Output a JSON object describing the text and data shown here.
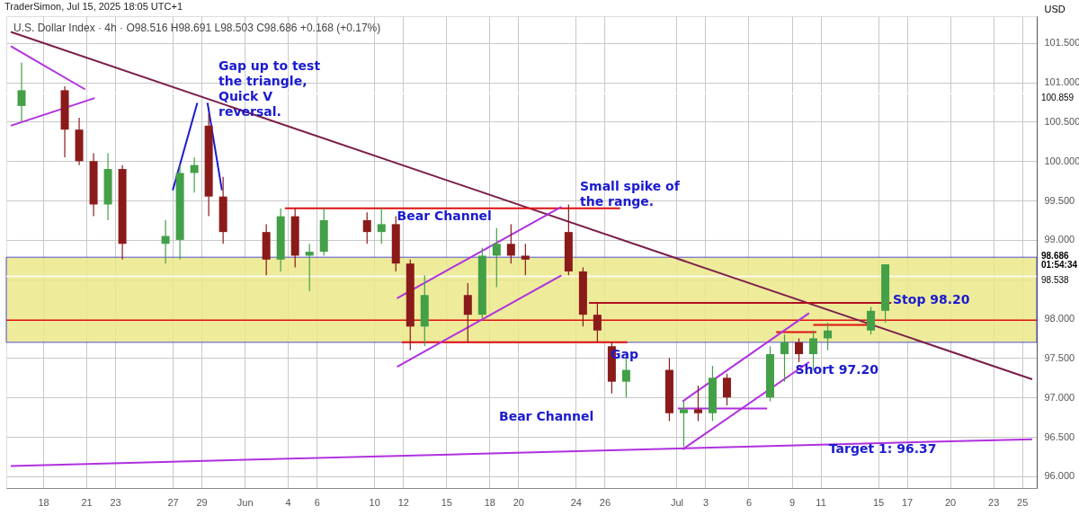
{
  "chart_data": {
    "type": "candlestick",
    "title": "TraderSimon, Jul 15, 2025 18:05 UTC+1",
    "subtitle": "U.S. Dollar Index · 4h · O98.516 H98.691 L98.503 C98.686 +0.168 (+0.17%)",
    "ylabel": "USD",
    "x": [
      "2025-05-16T12:00",
      "2025-05-19T12:00",
      "2025-05-20T12:00",
      "2025-05-21T12:00",
      "2025-05-22T12:00",
      "2025-05-23T12:00",
      "2025-05-26T12:00",
      "2025-05-27T12:00",
      "2025-05-28T12:00",
      "2025-05-29T12:00",
      "2025-05-30T12:00",
      "2025-06-02T12:00",
      "2025-06-03T12:00",
      "2025-06-04T12:00",
      "2025-06-05T12:00",
      "2025-06-06T12:00",
      "2025-06-09T12:00",
      "2025-06-10T12:00",
      "2025-06-11T12:00",
      "2025-06-12T12:00",
      "2025-06-13T12:00",
      "2025-06-16T12:00",
      "2025-06-17T12:00",
      "2025-06-18T12:00",
      "2025-06-19T12:00",
      "2025-06-20T12:00",
      "2025-06-23T12:00",
      "2025-06-24T12:00",
      "2025-06-25T12:00",
      "2025-06-26T12:00",
      "2025-06-27T12:00",
      "2025-06-30T12:00",
      "2025-07-01T12:00",
      "2025-07-02T12:00",
      "2025-07-03T12:00",
      "2025-07-04T12:00",
      "2025-07-07T12:00",
      "2025-07-08T12:00",
      "2025-07-09T12:00",
      "2025-07-10T12:00",
      "2025-07-11T12:00",
      "2025-07-14T12:00",
      "2025-07-15T12:00"
    ],
    "ohlc": [
      [
        100.7,
        101.25,
        100.5,
        100.9
      ],
      [
        100.9,
        100.95,
        100.05,
        100.4
      ],
      [
        100.4,
        100.55,
        99.95,
        100.0
      ],
      [
        100.0,
        100.1,
        99.3,
        99.45
      ],
      [
        99.45,
        100.1,
        99.25,
        99.9
      ],
      [
        99.9,
        99.95,
        98.75,
        98.95
      ],
      [
        98.95,
        99.25,
        98.7,
        99.05
      ],
      [
        99.0,
        99.95,
        98.75,
        99.85
      ],
      [
        99.85,
        100.05,
        99.6,
        99.95
      ],
      [
        100.45,
        100.6,
        99.3,
        99.55
      ],
      [
        99.55,
        99.8,
        98.95,
        99.1
      ],
      [
        99.1,
        99.2,
        98.55,
        98.75
      ],
      [
        98.75,
        99.4,
        98.6,
        99.3
      ],
      [
        99.3,
        99.4,
        98.65,
        98.8
      ],
      [
        98.8,
        98.95,
        98.35,
        98.85
      ],
      [
        98.85,
        99.4,
        98.8,
        99.25
      ],
      [
        99.25,
        99.35,
        98.95,
        99.1
      ],
      [
        99.1,
        99.4,
        98.95,
        99.2
      ],
      [
        99.2,
        99.3,
        98.6,
        98.7
      ],
      [
        98.7,
        98.75,
        97.6,
        97.9
      ],
      [
        97.9,
        98.55,
        97.65,
        98.3
      ],
      [
        98.3,
        98.45,
        97.7,
        98.05
      ],
      [
        98.05,
        98.9,
        98.0,
        98.8
      ],
      [
        98.8,
        99.15,
        98.4,
        98.95
      ],
      [
        98.95,
        99.2,
        98.7,
        98.8
      ],
      [
        98.8,
        98.95,
        98.55,
        98.75
      ],
      [
        99.1,
        99.45,
        98.55,
        98.6
      ],
      [
        98.6,
        98.65,
        97.9,
        98.05
      ],
      [
        98.05,
        98.2,
        97.7,
        97.85
      ],
      [
        97.65,
        97.7,
        97.05,
        97.2
      ],
      [
        97.2,
        97.5,
        97.0,
        97.35
      ],
      [
        97.35,
        97.5,
        96.7,
        96.8
      ],
      [
        96.8,
        96.95,
        96.37,
        96.85
      ],
      [
        96.85,
        97.15,
        96.7,
        96.8
      ],
      [
        96.8,
        97.4,
        96.7,
        97.25
      ],
      [
        97.25,
        97.3,
        96.9,
        97.0
      ],
      [
        97.0,
        97.65,
        96.95,
        97.55
      ],
      [
        97.55,
        97.8,
        97.2,
        97.7
      ],
      [
        97.7,
        97.75,
        97.45,
        97.55
      ],
      [
        97.55,
        97.85,
        97.35,
        97.75
      ],
      [
        97.75,
        97.95,
        97.6,
        97.85
      ],
      [
        97.85,
        98.15,
        97.8,
        98.1
      ],
      [
        98.1,
        98.69,
        97.95,
        98.69
      ]
    ],
    "series": [
      {
        "type": "line",
        "color": "#7b1f4a",
        "x": [
          "2025-05-15T18:00",
          "2025-07-25T17:00"
        ],
        "values": [
          101.64,
          97.23
        ]
      },
      {
        "type": "line",
        "color": "#b030e0",
        "x": [
          "2025-05-15T18:00",
          "2025-07-25T17:00"
        ],
        "values": [
          96.13,
          96.47
        ]
      },
      {
        "type": "line",
        "color": "#e01010",
        "x": [
          "2025-06-03T19:00",
          "2025-06-27T02:00"
        ],
        "values": [
          99.4,
          99.4
        ]
      },
      {
        "type": "line",
        "color": "#e01010",
        "x": [
          "2025-06-11T22:00",
          "2025-06-27T14:00"
        ],
        "values": [
          97.7,
          97.7
        ]
      },
      {
        "type": "line",
        "color": "#b01020",
        "x": [
          "2025-06-24T22:00",
          "2025-07-15T22:00"
        ],
        "values": [
          98.2,
          98.2
        ]
      },
      {
        "type": "line",
        "color": "#e01010",
        "x": [
          "2025-07-07T22:00",
          "2025-07-10T17:00"
        ],
        "values": [
          97.83,
          97.83
        ]
      },
      {
        "type": "line",
        "color": "#e01010",
        "x": [
          "2025-07-10T12:00",
          "2025-07-14T10:00"
        ],
        "values": [
          97.92,
          97.92
        ]
      },
      {
        "type": "line",
        "color": "#b030e0",
        "x": [
          "2025-07-01T02:00",
          "2025-07-07T07:00"
        ],
        "values": [
          96.86,
          96.86
        ]
      },
      {
        "type": "line",
        "color": "#b030e0",
        "x": [
          "2025-06-11T14:00",
          "2025-06-23T00:00"
        ],
        "values": [
          98.26,
          99.42
        ]
      },
      {
        "type": "line",
        "color": "#b030e0",
        "x": [
          "2025-06-11T14:00",
          "2025-06-23T00:00"
        ],
        "values": [
          97.39,
          98.55
        ]
      },
      {
        "type": "line",
        "color": "#b030e0",
        "x": [
          "2025-07-01T10:00",
          "2025-07-10T05:00"
        ],
        "values": [
          96.95,
          98.07
        ]
      },
      {
        "type": "line",
        "color": "#b030e0",
        "x": [
          "2025-07-01T10:00",
          "2025-07-10T05:00"
        ],
        "values": [
          96.34,
          97.45
        ]
      },
      {
        "type": "line",
        "color": "#1a1ad0",
        "x": [
          "2025-05-27T00:00",
          "2025-05-28T17:00"
        ],
        "values": [
          99.63,
          100.74
        ]
      },
      {
        "type": "line",
        "color": "#1a1ad0",
        "x": [
          "2025-05-29T10:00",
          "2025-05-30T10:00"
        ],
        "values": [
          100.74,
          99.63
        ]
      },
      {
        "type": "line",
        "color": "#b030e0",
        "x": [
          "2025-05-15T18:00",
          "2025-05-20T22:00"
        ],
        "values": [
          101.46,
          100.91
        ]
      },
      {
        "type": "line",
        "color": "#b030e0",
        "x": [
          "2025-05-15T18:00",
          "2025-05-21T14:00"
        ],
        "values": [
          100.45,
          100.8
        ]
      }
    ],
    "bands": [
      {
        "axis": "y",
        "from": 97.7,
        "to": 98.78,
        "color": "#ece88a"
      }
    ],
    "ref_lines": [
      {
        "axis": "y",
        "value": 100.859,
        "label": "100.859",
        "color": "#ffffff"
      },
      {
        "axis": "y",
        "value": 98.538,
        "label": "98.538",
        "color": "#ffffff"
      },
      {
        "axis": "y",
        "value": 97.98,
        "color": "#e01010"
      }
    ],
    "annotations": [
      "Gap up to test\nthe triangle,\nQuick V\nreversal.",
      "Small spike of\nthe range.",
      {
        "text": "Bear Channel",
        "x": "2025-06-11T14:00",
        "y": 99.38
      },
      "Bear Channel",
      {
        "text": "Gap",
        "x": "2025-06-26T10:00",
        "y": 97.62
      },
      "Stop 98.20",
      {
        "text": "Short 97.20",
        "x": "2025-07-09T06:00",
        "y": 97.42
      },
      {
        "text": "Target 1: 96.37",
        "x": "2025-07-11T14:00",
        "y": 96.42
      },
      {
        "text": "98.686\n01:54:34",
        "x": "2025-07-25T17:00",
        "y": 98.686
      }
    ],
    "xlim": [
      "2025-05-15T18:00",
      "2025-07-25T17:00"
    ],
    "ylim": [
      95.85,
      101.84
    ],
    "xticks": [
      {
        "value": "2025-05-18",
        "label": "18"
      },
      {
        "value": "2025-05-21",
        "label": "21"
      },
      {
        "value": "2025-05-23",
        "label": "23"
      },
      {
        "value": "2025-05-27",
        "label": "27"
      },
      {
        "value": "2025-05-29",
        "label": "29"
      },
      {
        "value": "2025-06-01",
        "label": "Jun"
      },
      {
        "value": "2025-06-04",
        "label": "4"
      },
      {
        "value": "2025-06-06",
        "label": "6"
      },
      {
        "value": "2025-06-10",
        "label": "10"
      },
      {
        "value": "2025-06-12",
        "label": "12"
      },
      {
        "value": "2025-06-15",
        "label": "15"
      },
      {
        "value": "2025-06-18",
        "label": "18"
      },
      {
        "value": "2025-06-20",
        "label": "20"
      },
      {
        "value": "2025-06-24",
        "label": "24"
      },
      {
        "value": "2025-06-26",
        "label": "26"
      },
      {
        "value": "2025-07-01",
        "label": "Jul"
      },
      {
        "value": "2025-07-03",
        "label": "3"
      },
      {
        "value": "2025-07-06",
        "label": "6"
      },
      {
        "value": "2025-07-09",
        "label": "9"
      },
      {
        "value": "2025-07-11",
        "label": "11"
      },
      {
        "value": "2025-07-15",
        "label": "15"
      },
      {
        "value": "2025-07-17",
        "label": "17"
      },
      {
        "value": "2025-07-20",
        "label": "20"
      },
      {
        "value": "2025-07-23",
        "label": "23"
      },
      {
        "value": "2025-07-25",
        "label": "25"
      }
    ],
    "yticks": [
      {
        "value": 96,
        "label": "96.000"
      },
      {
        "value": 96.5,
        "label": "96.500"
      },
      {
        "value": 97,
        "label": "97.000"
      },
      {
        "value": 97.5,
        "label": "97.500"
      },
      {
        "value": 98,
        "label": "98.000"
      },
      {
        "value": 98.5,
        "label": null
      },
      {
        "value": 99,
        "label": "99.000"
      },
      {
        "value": 99.5,
        "label": "99.500"
      },
      {
        "value": 100,
        "label": "100.000"
      },
      {
        "value": 100.5,
        "label": "100.500"
      },
      {
        "value": 101,
        "label": "101.000"
      },
      {
        "value": 101.5,
        "label": "101.500"
      }
    ],
    "grid": true
  }
}
